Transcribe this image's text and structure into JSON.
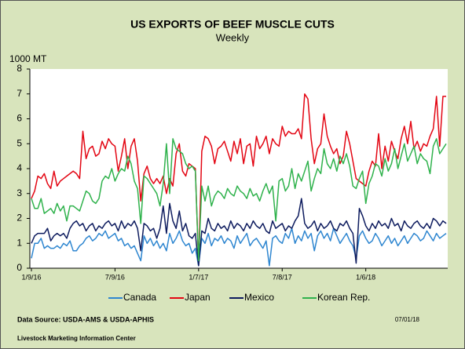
{
  "chart_data": {
    "type": "line",
    "title": "US EXPORTS OF BEEF MUSCLE CUTS",
    "subtitle": "Weekly",
    "y_label": "1000 MT",
    "source": "Data Source:  USDA-AMS & USDA-APHIS",
    "organization": "Livestock Marketing Information Center",
    "date": "07/01/18",
    "categories": [
      "1/9/16",
      null,
      null,
      null,
      null,
      null,
      null,
      null,
      null,
      null,
      null,
      null,
      null,
      null,
      null,
      null,
      null,
      null,
      null,
      null,
      null,
      null,
      null,
      null,
      null,
      null,
      "7/9/16",
      null,
      null,
      null,
      null,
      null,
      null,
      null,
      null,
      null,
      null,
      null,
      null,
      null,
      null,
      null,
      null,
      null,
      null,
      null,
      null,
      null,
      null,
      null,
      null,
      null,
      "1/7/17",
      null,
      null,
      null,
      null,
      null,
      null,
      null,
      null,
      null,
      null,
      null,
      null,
      null,
      null,
      null,
      null,
      null,
      null,
      null,
      null,
      null,
      null,
      null,
      null,
      null,
      "7/8/17",
      null,
      null,
      null,
      null,
      null,
      null,
      null,
      null,
      null,
      null,
      null,
      null,
      null,
      null,
      null,
      null,
      null,
      null,
      null,
      null,
      null,
      null,
      null,
      null,
      null,
      "1/6/18",
      null,
      null,
      null,
      null,
      null,
      null,
      null,
      null,
      null,
      null,
      null,
      null,
      null,
      null,
      null,
      null,
      null,
      null,
      null,
      null,
      null,
      null,
      null,
      null,
      null
    ],
    "ylim": [
      0,
      8
    ],
    "yticks": [
      0,
      1,
      2,
      3,
      4,
      5,
      6,
      7,
      8
    ],
    "grid": false,
    "legend": "bottom",
    "series": [
      {
        "name": "Canada",
        "color": "#2e86d0",
        "values": [
          0.4,
          1.0,
          1.0,
          1.2,
          0.8,
          0.9,
          0.8,
          0.8,
          0.9,
          0.8,
          1.0,
          0.9,
          1.1,
          0.7,
          0.7,
          0.9,
          1.0,
          1.2,
          1.3,
          1.1,
          1.2,
          1.4,
          1.3,
          1.5,
          1.2,
          1.3,
          1.4,
          1.1,
          1.2,
          0.9,
          1.0,
          0.8,
          0.9,
          0.6,
          0.3,
          1.3,
          1.0,
          1.2,
          0.9,
          1.1,
          0.8,
          1.0,
          0.7,
          1.4,
          1.0,
          1.2,
          1.5,
          1.1,
          0.9,
          1.0,
          0.6,
          0.8,
          0.1,
          1.2,
          1.0,
          1.4,
          0.9,
          1.2,
          1.1,
          1.3,
          1.0,
          1.2,
          1.1,
          0.8,
          1.3,
          1.0,
          1.2,
          1.4,
          0.9,
          1.1,
          1.2,
          1.0,
          0.8,
          1.1,
          0.1,
          1.2,
          1.3,
          1.1,
          1.0,
          1.4,
          1.2,
          1.6,
          1.0,
          1.3,
          1.1,
          1.5,
          1.2,
          1.4,
          0.7,
          1.3,
          1.5,
          1.2,
          1.4,
          1.1,
          1.6,
          1.3,
          1.0,
          1.2,
          1.4,
          1.1,
          0.9,
          0.4,
          1.3,
          1.5,
          1.2,
          1.0,
          1.1,
          1.4,
          1.2,
          0.9,
          1.1,
          1.3,
          1.0,
          1.2,
          0.9,
          1.1,
          1.3,
          1.0,
          1.2,
          1.4,
          1.3,
          1.1,
          1.2,
          1.5,
          1.3,
          1.1,
          1.4,
          1.2,
          1.3,
          1.4
        ]
      },
      {
        "name": "Japan",
        "color": "#e30613",
        "values": [
          2.8,
          3.1,
          3.7,
          3.6,
          3.8,
          3.4,
          3.2,
          3.9,
          3.3,
          3.5,
          3.6,
          3.7,
          3.8,
          3.9,
          3.8,
          3.6,
          5.5,
          4.4,
          4.8,
          4.9,
          4.5,
          4.6,
          5.1,
          4.8,
          5.2,
          5.0,
          4.9,
          3.9,
          4.5,
          5.2,
          4.0,
          4.9,
          5.2,
          4.3,
          2.7,
          3.8,
          4.1,
          3.6,
          3.4,
          3.6,
          3.4,
          3.7,
          3.0,
          3.6,
          3.3,
          4.6,
          5.0,
          3.9,
          3.7,
          4.2,
          4.1,
          4.0,
          0.2,
          4.7,
          5.3,
          5.2,
          4.9,
          4.2,
          4.8,
          4.9,
          5.1,
          4.7,
          4.3,
          5.1,
          4.6,
          5.2,
          4.2,
          4.9,
          5.0,
          4.1,
          5.3,
          4.8,
          5.0,
          5.3,
          4.6,
          5.2,
          5.0,
          4.9,
          5.7,
          5.3,
          5.5,
          5.4,
          5.4,
          5.6,
          5.2,
          7.0,
          6.8,
          5.2,
          4.2,
          4.8,
          5.0,
          6.2,
          5.3,
          4.9,
          4.6,
          4.8,
          4.2,
          4.5,
          5.5,
          5.0,
          4.3,
          3.6,
          3.5,
          3.4,
          3.3,
          3.9,
          4.3,
          4.1,
          5.4,
          4.0,
          4.9,
          4.3,
          5.1,
          4.7,
          4.4,
          5.2,
          5.7,
          5.0,
          5.9,
          4.8,
          5.1,
          4.7,
          5.0,
          4.9,
          5.3,
          5.6,
          6.9,
          4.9,
          6.9,
          6.9
        ]
      },
      {
        "name": "Mexico",
        "color": "#0d1b5e",
        "values": [
          1.0,
          1.3,
          1.4,
          1.4,
          1.4,
          1.6,
          1.1,
          1.3,
          1.4,
          1.3,
          1.4,
          1.2,
          1.6,
          1.8,
          1.9,
          1.7,
          1.8,
          1.5,
          1.7,
          1.8,
          1.5,
          1.7,
          1.6,
          1.8,
          1.9,
          1.7,
          1.8,
          1.5,
          1.9,
          1.6,
          1.8,
          1.7,
          1.9,
          1.6,
          0.7,
          1.8,
          1.7,
          1.5,
          1.6,
          1.2,
          1.6,
          2.5,
          1.4,
          2.6,
          1.9,
          1.6,
          2.3,
          1.5,
          1.8,
          1.3,
          1.2,
          1.4,
          0.1,
          1.5,
          1.4,
          2.0,
          1.6,
          1.5,
          1.8,
          1.6,
          1.7,
          1.5,
          1.9,
          1.6,
          1.8,
          1.7,
          1.5,
          1.8,
          1.6,
          1.9,
          1.7,
          1.6,
          1.8,
          1.5,
          1.4,
          1.9,
          1.6,
          1.7,
          1.8,
          1.5,
          1.7,
          1.6,
          1.9,
          2.1,
          2.8,
          1.8,
          1.6,
          1.7,
          1.9,
          1.5,
          1.8,
          1.6,
          1.7,
          1.9,
          1.6,
          1.5,
          1.8,
          1.7,
          1.9,
          1.6,
          1.4,
          0.2,
          2.4,
          2.1,
          1.7,
          1.5,
          1.8,
          1.6,
          1.9,
          1.7,
          1.8,
          1.6,
          2.0,
          1.7,
          1.8,
          1.5,
          1.9,
          1.7,
          1.6,
          1.8,
          1.9,
          1.7,
          1.6,
          1.8,
          1.6,
          2.0,
          1.9,
          1.7,
          1.9,
          1.8
        ]
      },
      {
        "name": "Korean Rep.",
        "color": "#2fb24c",
        "values": [
          2.8,
          2.4,
          2.4,
          2.8,
          2.2,
          2.3,
          2.4,
          2.2,
          2.6,
          2.3,
          2.5,
          1.9,
          2.5,
          2.5,
          2.4,
          2.3,
          2.7,
          3.1,
          3.0,
          2.7,
          2.6,
          2.8,
          3.5,
          3.7,
          3.6,
          4.0,
          3.5,
          3.8,
          4.0,
          3.9,
          4.5,
          4.2,
          3.5,
          3.2,
          1.8,
          3.7,
          3.6,
          3.4,
          3.2,
          3.0,
          2.5,
          3.4,
          5.0,
          3.0,
          5.2,
          4.8,
          4.7,
          4.6,
          4.2,
          4.0,
          4.1,
          3.9,
          0.3,
          3.3,
          2.7,
          3.3,
          2.5,
          2.9,
          3.1,
          3.0,
          2.8,
          3.2,
          3.0,
          2.9,
          3.3,
          3.1,
          3.0,
          2.8,
          3.2,
          2.9,
          3.0,
          2.7,
          3.1,
          3.4,
          3.0,
          3.3,
          1.9,
          3.5,
          3.6,
          3.1,
          3.3,
          4.0,
          3.2,
          3.8,
          3.5,
          3.9,
          4.3,
          3.1,
          3.6,
          4.0,
          3.8,
          4.8,
          4.2,
          4.0,
          4.4,
          3.9,
          4.5,
          4.2,
          4.6,
          4.1,
          3.3,
          3.2,
          3.6,
          3.9,
          2.6,
          3.4,
          3.7,
          4.2,
          4.1,
          3.7,
          4.4,
          3.9,
          4.2,
          4.8,
          4.0,
          4.5,
          5.0,
          4.3,
          4.6,
          4.9,
          4.2,
          4.6,
          4.4,
          4.3,
          3.8,
          4.9,
          5.2,
          4.6,
          4.8,
          5.0
        ]
      }
    ]
  }
}
